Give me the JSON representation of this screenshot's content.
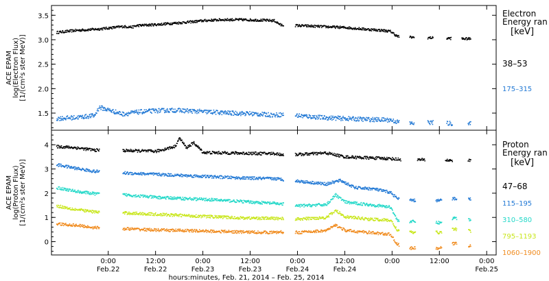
{
  "chart_data": [
    {
      "type": "scatter",
      "panel": "electron",
      "ylabel_lines": [
        "ACE EPAM",
        "log(Electron Flux)",
        "[1/(cm²s ster MeV)]"
      ],
      "ylim": [
        1.15,
        3.7
      ],
      "yticks": [
        "1.5",
        "2.0",
        "2.5",
        "3.0",
        "3.5"
      ],
      "legend": {
        "title_lines": [
          "Electron",
          "Energy ran"
        ],
        "unit": "[keV]",
        "entries": [
          "38–53",
          "175–315"
        ]
      },
      "series": [
        {
          "name": "38–53",
          "color": "#000000",
          "points": [
            [
              -0.55,
              3.16
            ],
            [
              -0.35,
              3.2
            ],
            [
              -0.1,
              3.23
            ],
            [
              0.15,
              3.28
            ],
            [
              0.25,
              3.27
            ],
            [
              0.3,
              3.3
            ],
            [
              0.5,
              3.32
            ],
            [
              0.7,
              3.35
            ],
            [
              0.9,
              3.38
            ],
            [
              1.0,
              3.4
            ],
            [
              1.2,
              3.42
            ],
            [
              1.4,
              3.42
            ],
            [
              1.6,
              3.41
            ],
            [
              1.75,
              3.4
            ],
            [
              1.82,
              3.31
            ],
            [
              2.0,
              3.3
            ],
            [
              2.25,
              3.28
            ],
            [
              2.5,
              3.26
            ],
            [
              2.75,
              3.22
            ],
            [
              2.9,
              3.2
            ],
            [
              2.98,
              3.18
            ],
            [
              3.05,
              3.08
            ],
            [
              3.2,
              3.06
            ],
            [
              3.4,
              3.05
            ],
            [
              3.6,
              3.04
            ],
            [
              3.75,
              3.03
            ],
            [
              3.83,
              3.03
            ]
          ]
        },
        {
          "name": "175–315",
          "color": "#1f77d4",
          "points": [
            [
              -0.55,
              1.4
            ],
            [
              -0.35,
              1.42
            ],
            [
              -0.15,
              1.46
            ],
            [
              -0.1,
              1.63
            ],
            [
              0.15,
              1.49
            ],
            [
              0.3,
              1.53
            ],
            [
              0.5,
              1.56
            ],
            [
              0.7,
              1.57
            ],
            [
              0.9,
              1.55
            ],
            [
              1.1,
              1.53
            ],
            [
              1.3,
              1.51
            ],
            [
              1.5,
              1.5
            ],
            [
              1.75,
              1.47
            ],
            [
              1.82,
              1.48
            ],
            [
              2.0,
              1.46
            ],
            [
              2.25,
              1.42
            ],
            [
              2.5,
              1.4
            ],
            [
              2.75,
              1.38
            ],
            [
              2.98,
              1.37
            ],
            [
              3.05,
              1.33
            ],
            [
              3.2,
              1.3
            ],
            [
              3.4,
              1.32
            ],
            [
              3.6,
              1.3
            ],
            [
              3.83,
              1.29
            ]
          ]
        }
      ]
    },
    {
      "type": "scatter",
      "panel": "proton",
      "ylabel_lines": [
        "ACE EPAM",
        "log(Proton Flux)",
        "[1/(cm²s ster MeV)]"
      ],
      "ylim": [
        -0.55,
        4.6
      ],
      "yticks": [
        "0",
        "1",
        "2",
        "3",
        "4"
      ],
      "legend": {
        "title_lines": [
          "Proton",
          "Energy ran"
        ],
        "unit": "[keV]",
        "entries": [
          "47–68",
          "115–195",
          "310–580",
          "795–1193",
          "1060–1900"
        ]
      },
      "series": [
        {
          "name": "47–68",
          "color": "#000000",
          "points": [
            [
              -0.55,
              3.95
            ],
            [
              -0.35,
              3.9
            ],
            [
              -0.15,
              3.8
            ],
            [
              0.2,
              3.78
            ],
            [
              0.5,
              3.75
            ],
            [
              0.7,
              3.95
            ],
            [
              0.75,
              4.3
            ],
            [
              0.82,
              3.9
            ],
            [
              0.9,
              4.1
            ],
            [
              1.0,
              3.7
            ],
            [
              1.3,
              3.68
            ],
            [
              1.6,
              3.66
            ],
            [
              1.75,
              3.66
            ],
            [
              1.82,
              3.62
            ],
            [
              2.0,
              3.62
            ],
            [
              2.3,
              3.68
            ],
            [
              2.5,
              3.52
            ],
            [
              2.75,
              3.48
            ],
            [
              2.98,
              3.45
            ],
            [
              3.05,
              3.42
            ],
            [
              3.3,
              3.4
            ],
            [
              3.6,
              3.38
            ],
            [
              3.83,
              3.37
            ]
          ]
        },
        {
          "name": "115–195",
          "color": "#1f77d4",
          "points": [
            [
              -0.55,
              3.2
            ],
            [
              -0.35,
              3.05
            ],
            [
              -0.15,
              2.92
            ],
            [
              0.2,
              2.85
            ],
            [
              0.5,
              2.8
            ],
            [
              0.8,
              2.75
            ],
            [
              1.1,
              2.7
            ],
            [
              1.4,
              2.65
            ],
            [
              1.75,
              2.62
            ],
            [
              1.82,
              2.6
            ],
            [
              2.0,
              2.52
            ],
            [
              2.3,
              2.4
            ],
            [
              2.45,
              2.55
            ],
            [
              2.6,
              2.25
            ],
            [
              2.8,
              2.2
            ],
            [
              2.98,
              2.05
            ],
            [
              3.05,
              1.8
            ],
            [
              3.2,
              1.72
            ],
            [
              3.5,
              1.72
            ],
            [
              3.65,
              1.8
            ],
            [
              3.83,
              1.78
            ]
          ]
        },
        {
          "name": "310–580",
          "color": "#22d8c8",
          "points": [
            [
              -0.55,
              2.25
            ],
            [
              -0.35,
              2.1
            ],
            [
              -0.15,
              2.0
            ],
            [
              0.2,
              1.95
            ],
            [
              0.5,
              1.85
            ],
            [
              0.8,
              1.8
            ],
            [
              1.1,
              1.75
            ],
            [
              1.4,
              1.68
            ],
            [
              1.75,
              1.6
            ],
            [
              1.82,
              1.58
            ],
            [
              2.0,
              1.5
            ],
            [
              2.3,
              1.55
            ],
            [
              2.4,
              1.95
            ],
            [
              2.5,
              1.65
            ],
            [
              2.75,
              1.55
            ],
            [
              2.98,
              1.45
            ],
            [
              3.05,
              0.9
            ],
            [
              3.2,
              0.85
            ],
            [
              3.5,
              0.8
            ],
            [
              3.65,
              1.0
            ],
            [
              3.83,
              0.92
            ]
          ]
        },
        {
          "name": "795–1193",
          "color": "#c8e61a",
          "points": [
            [
              -0.55,
              1.5
            ],
            [
              -0.35,
              1.35
            ],
            [
              -0.15,
              1.25
            ],
            [
              0.2,
              1.2
            ],
            [
              0.5,
              1.15
            ],
            [
              0.8,
              1.1
            ],
            [
              1.1,
              1.05
            ],
            [
              1.4,
              1.0
            ],
            [
              1.75,
              0.98
            ],
            [
              1.82,
              0.98
            ],
            [
              2.0,
              0.95
            ],
            [
              2.3,
              1.02
            ],
            [
              2.4,
              1.3
            ],
            [
              2.5,
              1.05
            ],
            [
              2.75,
              0.95
            ],
            [
              2.98,
              0.9
            ],
            [
              3.05,
              0.5
            ],
            [
              3.2,
              0.4
            ],
            [
              3.5,
              0.4
            ],
            [
              3.65,
              0.55
            ],
            [
              3.83,
              0.45
            ]
          ]
        },
        {
          "name": "1060–1900",
          "color": "#f08a1c",
          "points": [
            [
              -0.55,
              0.75
            ],
            [
              -0.35,
              0.7
            ],
            [
              -0.15,
              0.6
            ],
            [
              0.2,
              0.55
            ],
            [
              0.5,
              0.5
            ],
            [
              0.8,
              0.48
            ],
            [
              1.1,
              0.45
            ],
            [
              1.4,
              0.42
            ],
            [
              1.75,
              0.4
            ],
            [
              1.82,
              0.42
            ],
            [
              2.0,
              0.4
            ],
            [
              2.3,
              0.48
            ],
            [
              2.4,
              0.7
            ],
            [
              2.5,
              0.48
            ],
            [
              2.75,
              0.4
            ],
            [
              2.98,
              0.32
            ],
            [
              3.05,
              -0.1
            ],
            [
              3.2,
              -0.25
            ],
            [
              3.5,
              -0.25
            ],
            [
              3.65,
              -0.05
            ],
            [
              3.83,
              -0.15
            ]
          ]
        }
      ]
    }
  ],
  "x_axis": {
    "range_days": [
      -0.6,
      4.1
    ],
    "tick_days": [
      0,
      0.5,
      1,
      1.5,
      2,
      2.5,
      3,
      3.5,
      4
    ],
    "tick_times": [
      "0:00",
      "12:00",
      "0:00",
      "12:00",
      "0:00",
      "12:00",
      "0:00",
      "12:00",
      "0:00"
    ],
    "tick_dates": [
      "Feb.22",
      "Feb.22",
      "Feb.23",
      "Feb.23",
      "Feb.24",
      "Feb.24",
      "Feb.25"
    ],
    "tick_date_days": [
      0,
      0.5,
      1,
      1.5,
      2,
      2.5,
      4
    ],
    "label": "hours:minutes, Feb. 21, 2014 – Feb. 25, 2014"
  }
}
